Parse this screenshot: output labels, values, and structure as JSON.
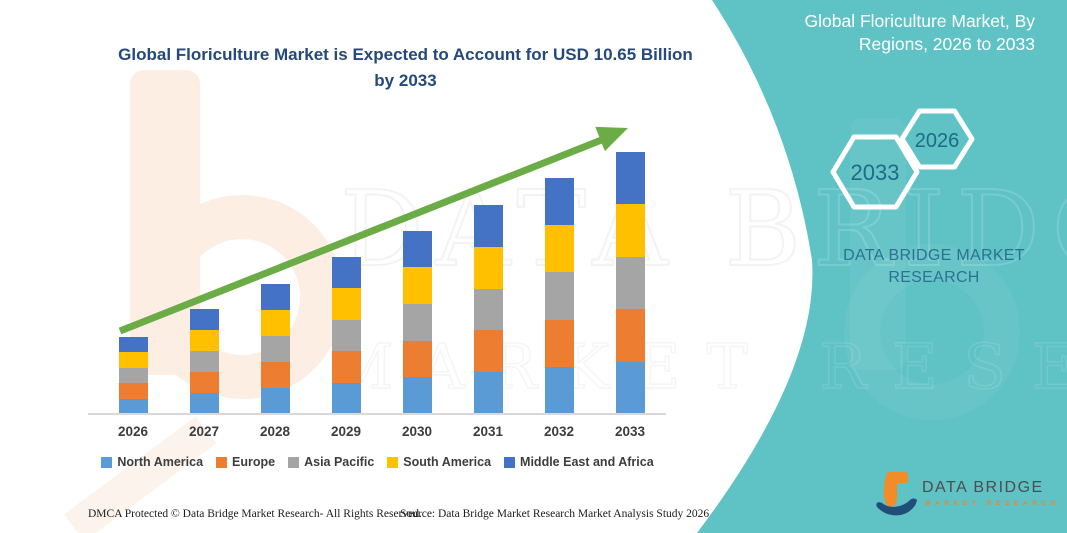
{
  "header": {
    "chart_title": "Global Floriculture Market is Expected to Account for USD 10.65 Billion by 2033",
    "panel_title": "Global Floriculture Market, By Regions, 2026 to 2033"
  },
  "chart_data": {
    "type": "bar",
    "stacked": true,
    "title": "Global Floriculture Market is Expected to Account for USD 10.65 Billion by 2033",
    "unit": "USD Billion",
    "categories": [
      "2026",
      "2027",
      "2028",
      "2029",
      "2030",
      "2031",
      "2032",
      "2033"
    ],
    "series": [
      {
        "name": "North America",
        "color": "#5B9BD5",
        "values": [
          0.63,
          0.85,
          1.06,
          1.28,
          1.49,
          1.7,
          1.92,
          2.13
        ]
      },
      {
        "name": "Europe",
        "color": "#ED7D31",
        "values": [
          0.63,
          0.85,
          1.06,
          1.28,
          1.49,
          1.7,
          1.92,
          2.13
        ]
      },
      {
        "name": "Asia Pacific",
        "color": "#A5A5A5",
        "values": [
          0.63,
          0.85,
          1.06,
          1.28,
          1.49,
          1.7,
          1.92,
          2.13
        ]
      },
      {
        "name": "South America",
        "color": "#FFC000",
        "values": [
          0.63,
          0.85,
          1.06,
          1.28,
          1.49,
          1.7,
          1.92,
          2.13
        ]
      },
      {
        "name": "Middle East and Africa",
        "color": "#4472C4",
        "values": [
          0.63,
          0.85,
          1.06,
          1.28,
          1.49,
          1.7,
          1.92,
          2.13
        ]
      }
    ],
    "totals": [
      3.17,
      4.24,
      5.31,
      6.38,
      7.45,
      8.52,
      9.59,
      10.65
    ],
    "ylim": [
      0,
      10.65
    ],
    "gridlines": false,
    "legend_position": "bottom",
    "annotations": [
      "green upward trend arrow from 2026 to 2033"
    ]
  },
  "right_panel": {
    "hexagon_years": [
      "2033",
      "2026"
    ],
    "brand_text": "DATA BRIDGE MARKET RESEARCH"
  },
  "logo": {
    "name": "DATA BRIDGE",
    "tagline": "MARKET RESEARCH"
  },
  "watermarks": {
    "text_primary": "DATA BRIDGE",
    "text_secondary": "MARKET RESEARCH"
  },
  "footer": {
    "dmca": "DMCA Protected © Data Bridge Market Research-  All Rights Reserved.",
    "source": "Source: Data Bridge Market Research  Market Analysis Study 2026"
  },
  "colors": {
    "teal_background": "#5FC2C5",
    "title_blue": "#25497B",
    "arrow_green": "#6BAC47",
    "hexagon_year_text": "#1D6B85",
    "brand_blue": "#2C7193",
    "axis_text": "#3D3D3D"
  }
}
